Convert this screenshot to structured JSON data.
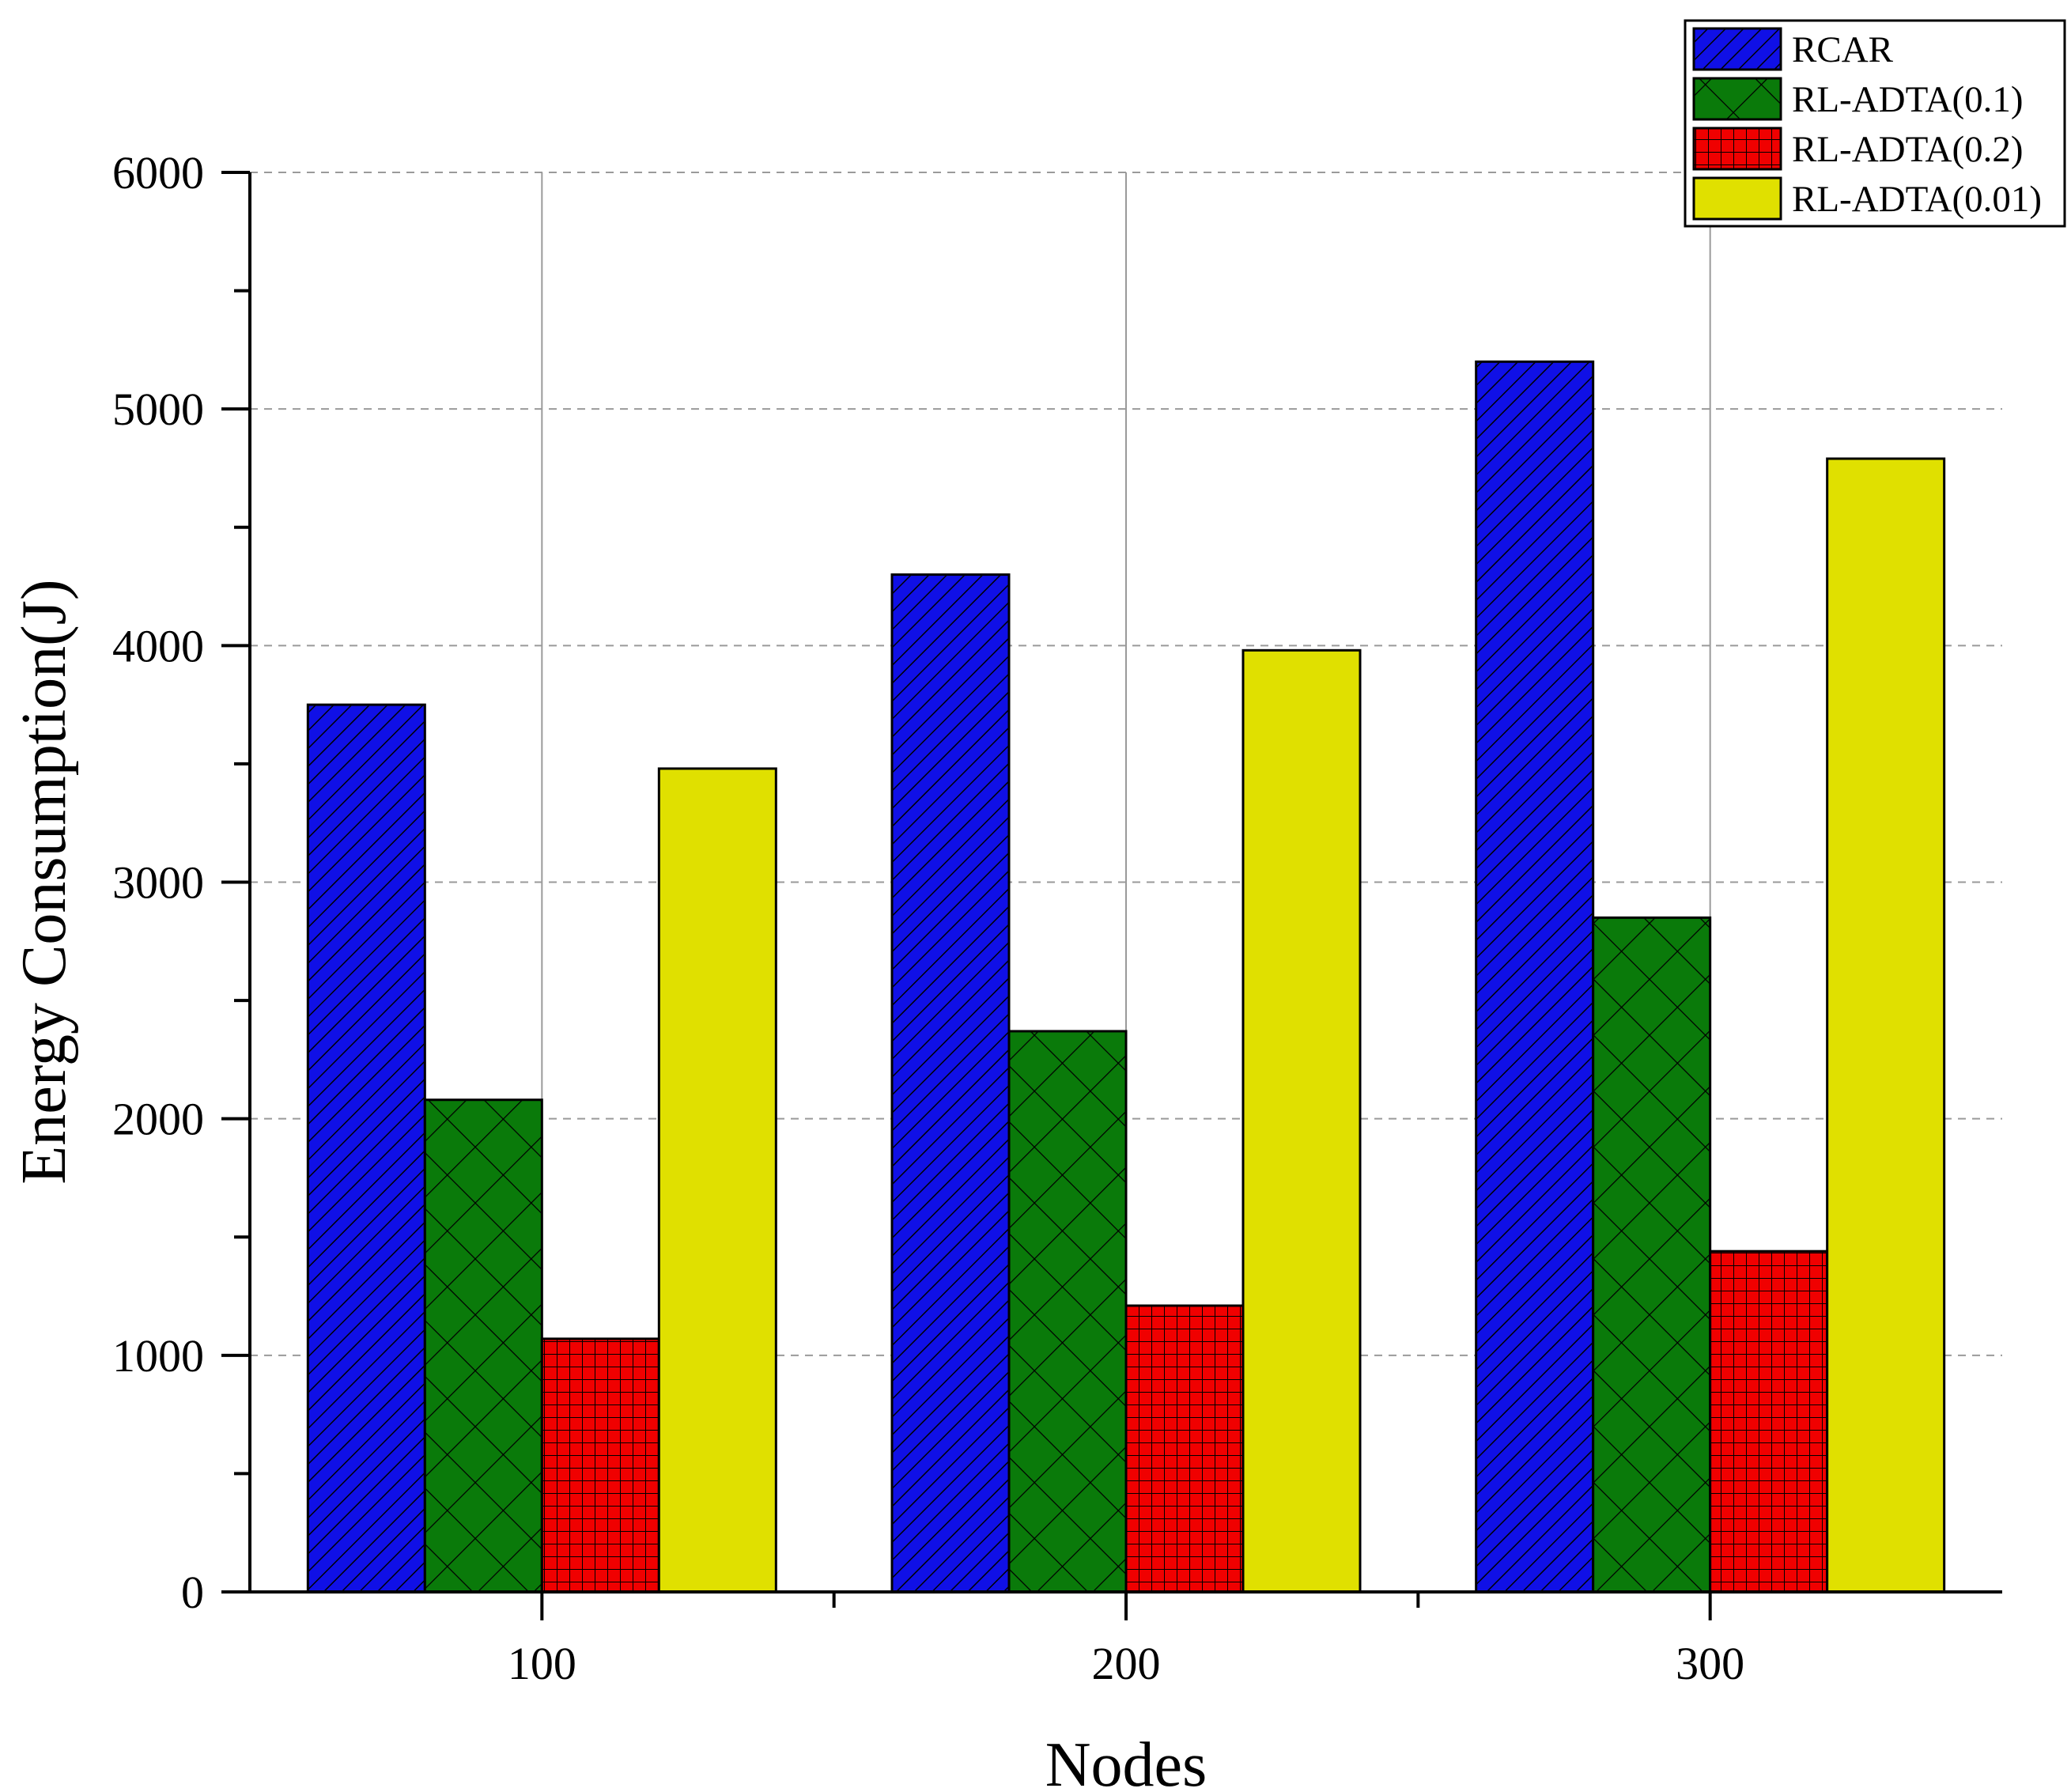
{
  "chart_data": {
    "type": "bar",
    "title": "",
    "xlabel": "Nodes",
    "ylabel": "Energy Consumption(J)",
    "categories": [
      "100",
      "200",
      "300"
    ],
    "ylim": [
      0,
      6000
    ],
    "yticks": [
      0,
      1000,
      2000,
      3000,
      4000,
      5000,
      6000
    ],
    "grid": "horizontal dashed at major ticks; vertical solid at categories",
    "legend_position": "top-right",
    "series": [
      {
        "name": "RCAR",
        "values": [
          3750,
          4300,
          5200
        ],
        "color": "#1010e6",
        "pattern": "diagonal"
      },
      {
        "name": "RL-ADTA(0.1)",
        "values": [
          2080,
          2370,
          2850
        ],
        "color": "#0a7a0a",
        "pattern": "crosshatch"
      },
      {
        "name": "RL-ADTA(0.2)",
        "values": [
          1070,
          1210,
          1440
        ],
        "color": "#f00000",
        "pattern": "grid"
      },
      {
        "name": "RL-ADTA(0.01)",
        "values": [
          3480,
          3980,
          4790
        ],
        "color": "#e0e000",
        "pattern": "solid"
      }
    ]
  }
}
